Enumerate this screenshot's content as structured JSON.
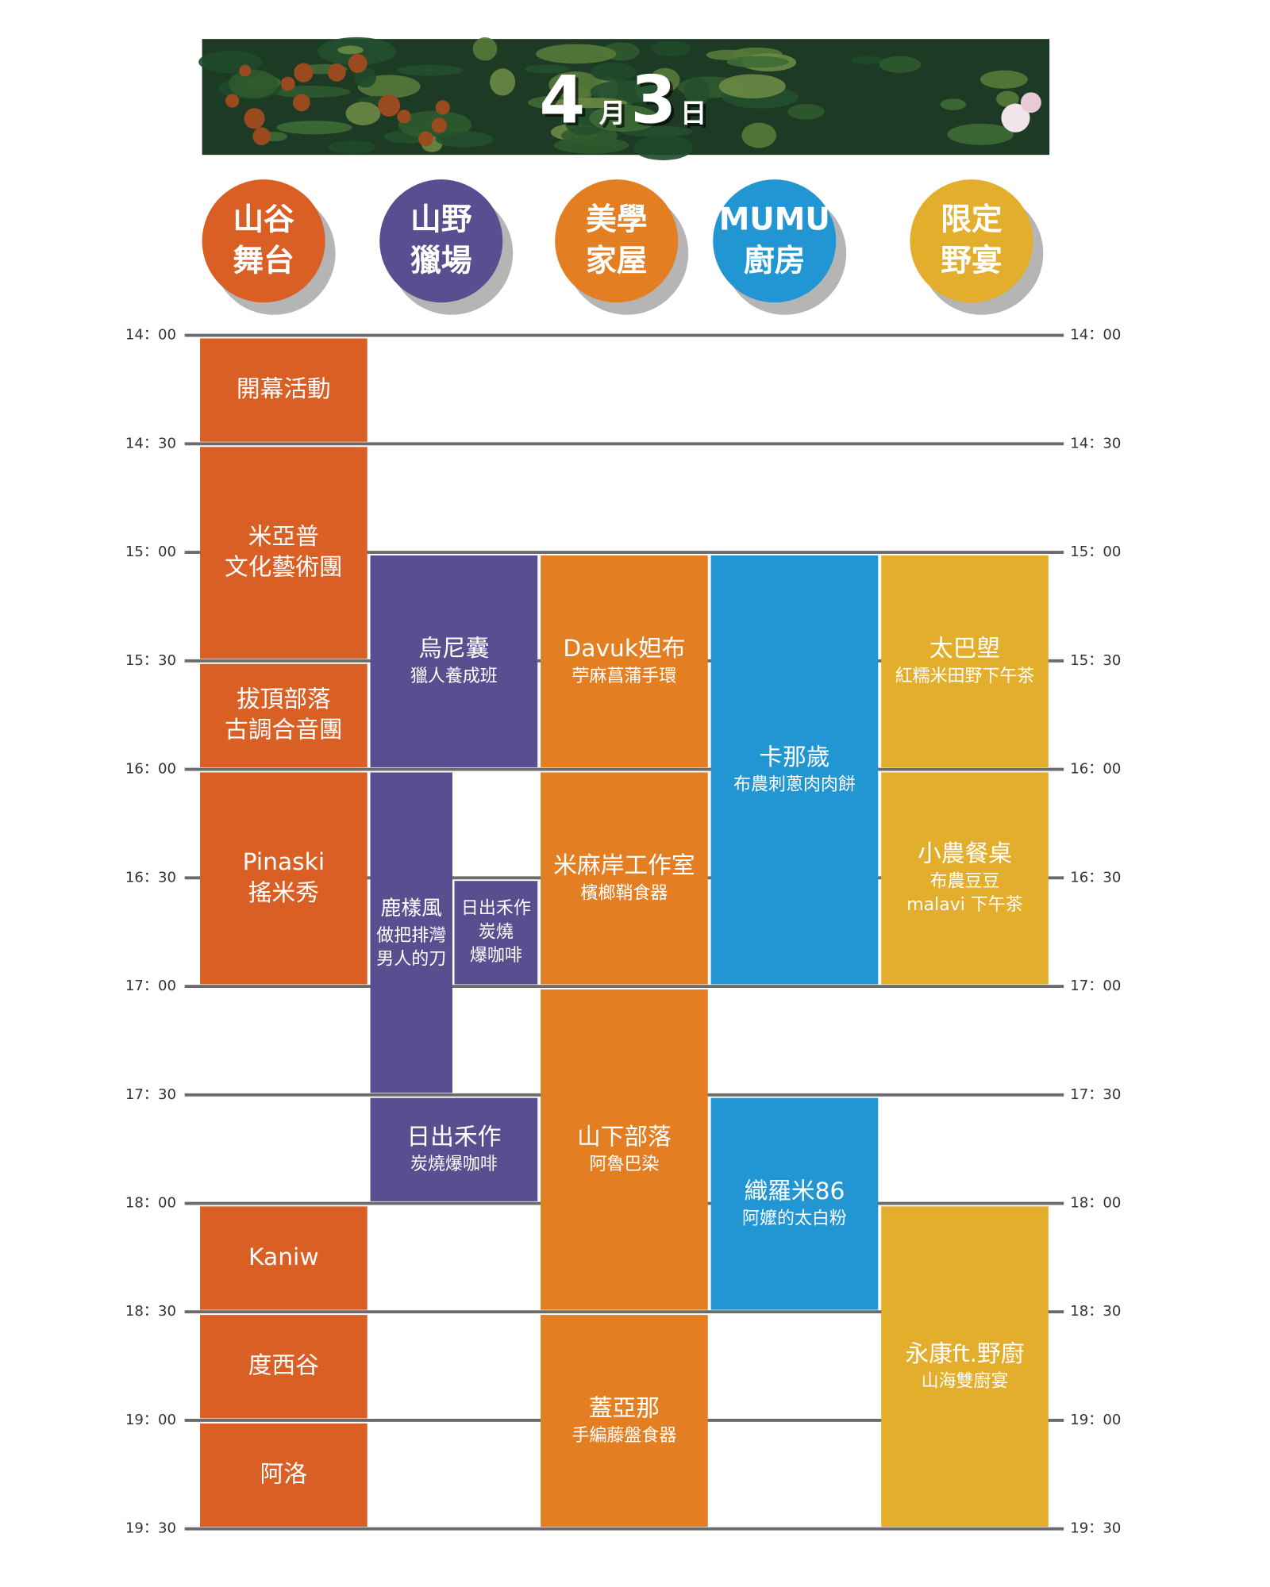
{
  "date": [
    "4",
    "月",
    "3",
    "日"
  ],
  "times": [
    "14：00",
    "14：30",
    "15：00",
    "15：30",
    "16：00",
    "16：30",
    "17：00",
    "17：30",
    "18：00",
    "18：30",
    "19：00",
    "19：30"
  ],
  "venues": [
    {
      "name": [
        "山谷",
        "舞台"
      ],
      "events": [
        {
          "title": [
            "開幕活動"
          ],
          "subtitle": []
        },
        {
          "title": [
            "米亞普",
            "文化藝術團"
          ],
          "subtitle": []
        },
        {
          "title": [
            "拔頂部落",
            "古調合音團"
          ],
          "subtitle": []
        },
        {
          "title": [
            "Pinaski",
            "搖米秀"
          ],
          "subtitle": []
        },
        {
          "title": [
            "Kaniw"
          ],
          "subtitle": []
        },
        {
          "title": [
            "度西谷"
          ],
          "subtitle": []
        },
        {
          "title": [
            "阿洛"
          ],
          "subtitle": []
        }
      ]
    },
    {
      "name": [
        "山野",
        "獵場"
      ],
      "events": [
        {
          "title": [
            "烏尼囊"
          ],
          "subtitle": [
            "獵人養成班"
          ]
        },
        {
          "title": [
            "鹿樣風"
          ],
          "subtitle": [
            "做把排灣",
            "男人的刀"
          ]
        },
        {
          "title": [],
          "subtitle": [
            "日出禾作",
            "炭燒",
            "爆咖啡"
          ]
        },
        {
          "title": [
            "日出禾作"
          ],
          "subtitle": [
            "炭燒爆咖啡"
          ]
        }
      ]
    },
    {
      "name": [
        "美學",
        "家屋"
      ],
      "events": [
        {
          "title": [
            "Davuk妲布"
          ],
          "subtitle": [
            "苧麻菖蒲手環"
          ]
        },
        {
          "title": [
            "米麻岸工作室"
          ],
          "subtitle": [
            "檳榔鞘食器"
          ]
        },
        {
          "title": [
            "山下部落"
          ],
          "subtitle": [
            "阿魯巴染"
          ]
        },
        {
          "title": [
            "蓋亞那"
          ],
          "subtitle": [
            "手編藤盤食器"
          ]
        }
      ]
    },
    {
      "name": [
        "MUMU",
        "廚房"
      ],
      "events": [
        {
          "title": [
            "卡那歲"
          ],
          "subtitle": [
            "布農刺蔥肉肉餅"
          ]
        },
        {
          "title": [
            "織羅米86"
          ],
          "subtitle": [
            "阿嬤的太白粉"
          ]
        }
      ]
    },
    {
      "name": [
        "限定",
        "野宴"
      ],
      "events": [
        {
          "title": [
            "太巴塱"
          ],
          "subtitle": [
            "紅糯米田野下午茶"
          ]
        },
        {
          "title": [
            "小農餐桌"
          ],
          "subtitle": [
            "布農豆豆",
            "malavi 下午茶"
          ]
        },
        {
          "title": [
            "永康ft.野廚"
          ],
          "subtitle": [
            "山海雙廚宴"
          ]
        }
      ]
    }
  ]
}
